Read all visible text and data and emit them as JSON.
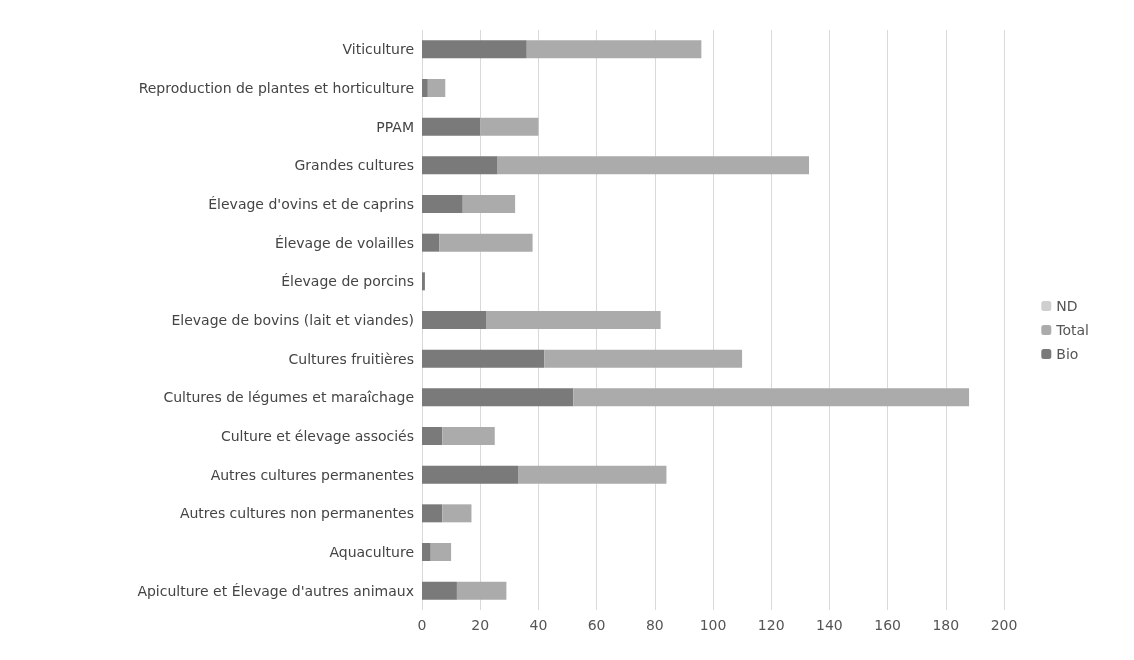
{
  "chart_data": {
    "type": "bar",
    "orientation": "horizontal",
    "stacked": true,
    "categories": [
      "Viticulture",
      "Reproduction de plantes et horticulture",
      "PPAM",
      "Grandes cultures",
      "Élevage d'ovins et de caprins",
      "Élevage de volailles",
      "Élevage de porcins",
      "Elevage de bovins (lait et viandes)",
      "Cultures fruitières",
      "Cultures de légumes et maraîchage",
      "Culture et élevage associés",
      "Autres cultures permanentes",
      "Autres cultures non permanentes",
      "Aquaculture",
      "Apiculture et Élevage d'autres animaux"
    ],
    "series": [
      {
        "name": "Bio",
        "color": "#7a7a7a",
        "values": [
          36,
          2,
          20,
          26,
          14,
          6,
          1,
          22,
          42,
          52,
          7,
          33,
          7,
          3,
          12
        ]
      },
      {
        "name": "Total",
        "color": "#ababab",
        "values": [
          60,
          6,
          20,
          107,
          18,
          32,
          0,
          60,
          68,
          136,
          18,
          51,
          10,
          7,
          17
        ]
      },
      {
        "name": "ND",
        "color": "#cfcfcf",
        "values": [
          null,
          null,
          null,
          null,
          null,
          null,
          null,
          null,
          null,
          null,
          null,
          null,
          null,
          null,
          null
        ]
      }
    ],
    "xlim": [
      0,
      200
    ],
    "xticks": [
      0,
      20,
      40,
      60,
      80,
      100,
      120,
      140,
      160,
      180,
      200
    ],
    "grid": "x",
    "legend": "right"
  }
}
